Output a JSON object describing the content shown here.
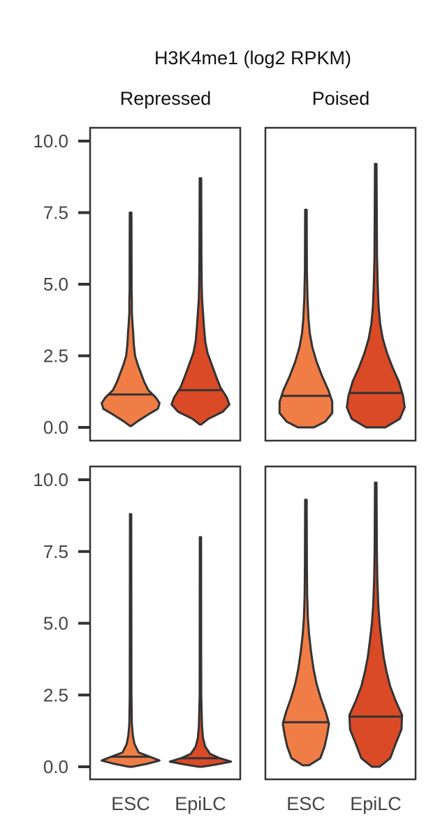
{
  "chart_data": {
    "type": "violin",
    "title": "H3K4me1 (log2 RPKM)",
    "columns": [
      "Repressed",
      "Poised"
    ],
    "categories": [
      "ESC",
      "EpiLC"
    ],
    "ylim": [
      -0.4,
      10.5
    ],
    "yticks": [
      0.0,
      2.5,
      5.0,
      7.5,
      10.0
    ],
    "ytick_labels": [
      "0.0",
      "2.5",
      "5.0",
      "7.5",
      "10.0"
    ],
    "colors": {
      "ESC": "#f07d45",
      "EpiLC": "#da4a27",
      "outline": "#333333"
    },
    "panels": [
      {
        "row": 0,
        "column": "Repressed",
        "violins": [
          {
            "category": "ESC",
            "median": 1.15,
            "min": 0.05,
            "max": 7.5,
            "density": [
              [
                0.05,
                0.02
              ],
              [
                0.2,
                0.2
              ],
              [
                0.45,
                0.55
              ],
              [
                0.65,
                0.85
              ],
              [
                0.85,
                0.9
              ],
              [
                1.05,
                0.78
              ],
              [
                1.3,
                0.55
              ],
              [
                1.6,
                0.42
              ],
              [
                1.9,
                0.32
              ],
              [
                2.2,
                0.22
              ],
              [
                2.5,
                0.14
              ],
              [
                2.9,
                0.1
              ],
              [
                3.3,
                0.08
              ],
              [
                3.6,
                0.06
              ],
              [
                4.0,
                0.04
              ],
              [
                4.4,
                0.04
              ],
              [
                4.8,
                0.03
              ],
              [
                5.5,
                0.03
              ],
              [
                7.5,
                0.025
              ]
            ]
          },
          {
            "category": "EpiLC",
            "median": 1.3,
            "min": 0.1,
            "max": 8.7,
            "density": [
              [
                0.1,
                0.02
              ],
              [
                0.3,
                0.25
              ],
              [
                0.55,
                0.7
              ],
              [
                0.8,
                0.9
              ],
              [
                1.05,
                0.82
              ],
              [
                1.4,
                0.62
              ],
              [
                1.8,
                0.48
              ],
              [
                2.2,
                0.35
              ],
              [
                2.6,
                0.22
              ],
              [
                3.0,
                0.15
              ],
              [
                3.5,
                0.11
              ],
              [
                4.0,
                0.08
              ],
              [
                4.5,
                0.05
              ],
              [
                5.0,
                0.04
              ],
              [
                6.0,
                0.03
              ],
              [
                8.7,
                0.025
              ]
            ]
          }
        ]
      },
      {
        "row": 0,
        "column": "Poised",
        "violins": [
          {
            "category": "ESC",
            "median": 1.1,
            "min": 0.0,
            "max": 7.6,
            "density": [
              [
                0.0,
                0.25
              ],
              [
                0.2,
                0.6
              ],
              [
                0.5,
                0.82
              ],
              [
                0.9,
                0.82
              ],
              [
                1.3,
                0.7
              ],
              [
                1.8,
                0.5
              ],
              [
                2.3,
                0.33
              ],
              [
                2.8,
                0.2
              ],
              [
                3.3,
                0.12
              ],
              [
                3.8,
                0.08
              ],
              [
                4.5,
                0.05
              ],
              [
                5.5,
                0.03
              ],
              [
                7.6,
                0.025
              ]
            ]
          },
          {
            "category": "EpiLC",
            "median": 1.2,
            "min": 0.0,
            "max": 9.2,
            "density": [
              [
                0.0,
                0.3
              ],
              [
                0.3,
                0.75
              ],
              [
                0.7,
                0.9
              ],
              [
                1.1,
                0.85
              ],
              [
                1.6,
                0.72
              ],
              [
                2.1,
                0.52
              ],
              [
                2.6,
                0.35
              ],
              [
                3.1,
                0.22
              ],
              [
                3.6,
                0.14
              ],
              [
                4.2,
                0.09
              ],
              [
                5.0,
                0.06
              ],
              [
                6.0,
                0.04
              ],
              [
                9.2,
                0.025
              ]
            ]
          }
        ]
      },
      {
        "row": 1,
        "column": "Repressed",
        "violins": [
          {
            "category": "ESC",
            "median": 0.35,
            "min": 0.0,
            "max": 8.8,
            "density": [
              [
                0.0,
                0.05
              ],
              [
                0.1,
                0.5
              ],
              [
                0.22,
                0.9
              ],
              [
                0.35,
                0.6
              ],
              [
                0.5,
                0.25
              ],
              [
                0.8,
                0.12
              ],
              [
                1.1,
                0.07
              ],
              [
                1.5,
                0.04
              ],
              [
                2.5,
                0.025
              ],
              [
                8.8,
                0.02
              ]
            ]
          },
          {
            "category": "EpiLC",
            "median": 0.3,
            "min": 0.0,
            "max": 8.0,
            "density": [
              [
                0.0,
                0.05
              ],
              [
                0.08,
                0.5
              ],
              [
                0.18,
                0.95
              ],
              [
                0.3,
                0.6
              ],
              [
                0.45,
                0.3
              ],
              [
                0.7,
                0.15
              ],
              [
                1.0,
                0.08
              ],
              [
                1.4,
                0.05
              ],
              [
                2.5,
                0.025
              ],
              [
                8.0,
                0.02
              ]
            ]
          }
        ]
      },
      {
        "row": 1,
        "column": "Poised",
        "violins": [
          {
            "category": "ESC",
            "median": 1.55,
            "min": 0.05,
            "max": 9.3,
            "density": [
              [
                0.05,
                0.1
              ],
              [
                0.3,
                0.45
              ],
              [
                0.7,
                0.58
              ],
              [
                1.1,
                0.66
              ],
              [
                1.5,
                0.72
              ],
              [
                1.9,
                0.62
              ],
              [
                2.4,
                0.46
              ],
              [
                2.9,
                0.33
              ],
              [
                3.4,
                0.24
              ],
              [
                4.0,
                0.16
              ],
              [
                4.6,
                0.1
              ],
              [
                5.2,
                0.06
              ],
              [
                6.0,
                0.04
              ],
              [
                7.0,
                0.03
              ],
              [
                9.3,
                0.025
              ]
            ]
          },
          {
            "category": "EpiLC",
            "median": 1.75,
            "min": 0.0,
            "max": 9.9,
            "density": [
              [
                0.0,
                0.12
              ],
              [
                0.3,
                0.45
              ],
              [
                0.8,
                0.62
              ],
              [
                1.3,
                0.8
              ],
              [
                1.8,
                0.82
              ],
              [
                2.3,
                0.62
              ],
              [
                2.8,
                0.45
              ],
              [
                3.3,
                0.34
              ],
              [
                3.8,
                0.25
              ],
              [
                4.4,
                0.18
              ],
              [
                5.0,
                0.12
              ],
              [
                5.6,
                0.08
              ],
              [
                6.5,
                0.05
              ],
              [
                7.5,
                0.035
              ],
              [
                9.9,
                0.025
              ]
            ]
          }
        ]
      }
    ]
  }
}
